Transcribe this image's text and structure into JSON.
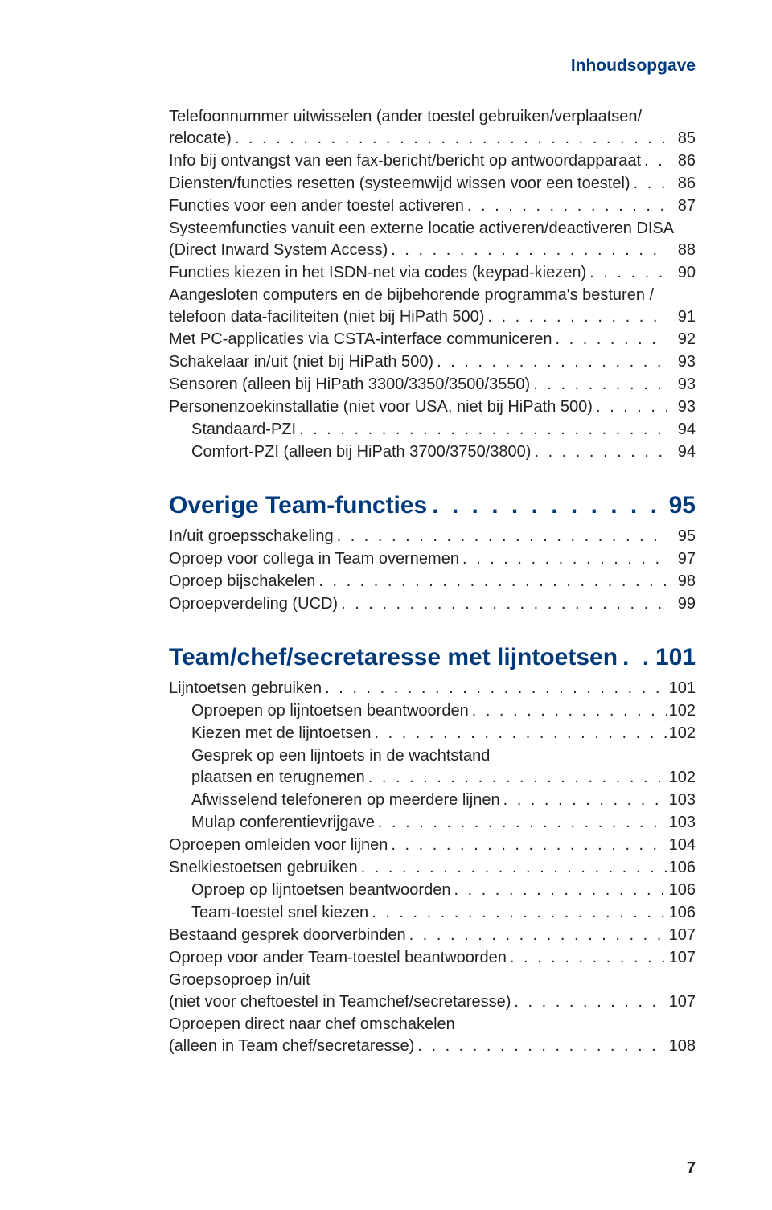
{
  "header": "Inhoudsopgave",
  "pageNumber": "7",
  "colors": {
    "brand": "#003a7a",
    "text": "#222222",
    "background": "#ffffff"
  },
  "block1": [
    {
      "text": "Telefoonnummer uitwisselen (ander toestel gebruiken/verplaatsen/\nrelocate)",
      "page": "85",
      "indent": 0
    },
    {
      "text": "Info bij ontvangst van een fax-bericht/bericht op antwoordapparaat",
      "page": "86",
      "indent": 0
    },
    {
      "text": "Diensten/functies resetten (systeemwijd wissen voor een toestel)",
      "page": "86",
      "indent": 0
    },
    {
      "text": "Functies voor een ander toestel activeren",
      "page": "87",
      "indent": 0
    },
    {
      "text": "Systeemfuncties vanuit een externe locatie activeren/deactiveren DISA\n(Direct Inward System Access)",
      "page": "88",
      "indent": 0
    },
    {
      "text": "Functies kiezen in het ISDN-net via codes (keypad-kiezen)",
      "page": "90",
      "indent": 0
    },
    {
      "text": "Aangesloten computers en de bijbehorende programma's besturen /\ntelefoon data-faciliteiten (niet bij HiPath 500)",
      "page": "91",
      "indent": 0
    },
    {
      "text": "Met PC-applicaties via CSTA-interface communiceren",
      "page": "92",
      "indent": 0
    },
    {
      "text": "Schakelaar in/uit (niet bij HiPath 500)",
      "page": "93",
      "indent": 0
    },
    {
      "text": "Sensoren (alleen bij HiPath 3300/3350/3500/3550)",
      "page": "93",
      "indent": 0
    },
    {
      "text": "Personenzoekinstallatie (niet voor USA, niet bij HiPath 500)",
      "page": "93",
      "indent": 0
    },
    {
      "text": "Standaard-PZI",
      "page": "94",
      "indent": 1
    },
    {
      "text": "Comfort-PZI (alleen bij HiPath 3700/3750/3800)",
      "page": "94",
      "indent": 1
    }
  ],
  "section2": {
    "title": "Overige Team-functies",
    "page": "95"
  },
  "block2": [
    {
      "text": "In/uit groepsschakeling",
      "page": "95",
      "indent": 0
    },
    {
      "text": "Oproep voor collega in Team overnemen",
      "page": "97",
      "indent": 0
    },
    {
      "text": "Oproep bijschakelen",
      "page": "98",
      "indent": 0
    },
    {
      "text": "Oproepverdeling (UCD)",
      "page": "99",
      "indent": 0
    }
  ],
  "section3": {
    "title": "Team/chef/secretaresse met lijntoetsen",
    "page": "101"
  },
  "block3": [
    {
      "text": "Lijntoetsen gebruiken",
      "page": "101",
      "indent": 0
    },
    {
      "text": "Oproepen op lijntoetsen beantwoorden",
      "page": "102",
      "indent": 1
    },
    {
      "text": "Kiezen met de lijntoetsen",
      "page": "102",
      "indent": 1
    },
    {
      "text": "Gesprek op een lijntoets in de wachtstand\nplaatsen en terugnemen",
      "page": "102",
      "indent": 1
    },
    {
      "text": "Afwisselend telefoneren op meerdere lijnen",
      "page": "103",
      "indent": 1
    },
    {
      "text": "Mulap conferentievrijgave",
      "page": "103",
      "indent": 1
    },
    {
      "text": "Oproepen omleiden voor lijnen",
      "page": "104",
      "indent": 0
    },
    {
      "text": "Snelkiestoetsen gebruiken",
      "page": "106",
      "indent": 0
    },
    {
      "text": "Oproep op lijntoetsen beantwoorden",
      "page": "106",
      "indent": 1
    },
    {
      "text": "Team-toestel snel kiezen",
      "page": "106",
      "indent": 1
    },
    {
      "text": "Bestaand gesprek doorverbinden",
      "page": "107",
      "indent": 0
    },
    {
      "text": "Oproep voor ander Team-toestel beantwoorden",
      "page": "107",
      "indent": 0
    },
    {
      "text": "Groepsoproep in/uit\n(niet voor cheftoestel in Teamchef/secretaresse)",
      "page": "107",
      "indent": 0
    },
    {
      "text": "Oproepen direct naar chef omschakelen\n(alleen in Team chef/secretaresse)",
      "page": "108",
      "indent": 0
    }
  ]
}
